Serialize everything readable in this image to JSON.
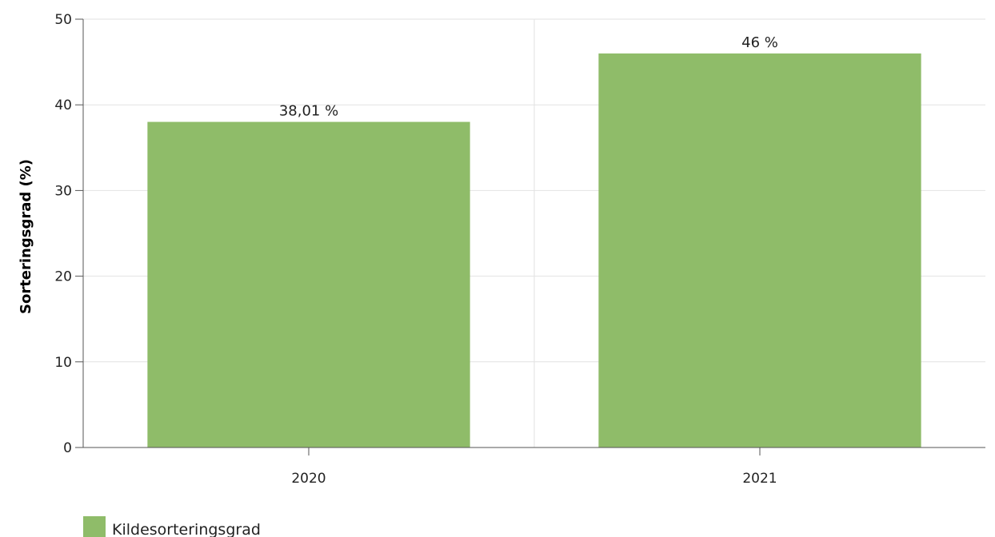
{
  "chart_data": {
    "type": "bar",
    "categories": [
      "2020",
      "2021"
    ],
    "series": [
      {
        "name": "Kildesorteringsgrad",
        "values": [
          38.01,
          46
        ],
        "labels": [
          "38,01 %",
          "46 %"
        ],
        "color": "#8fbc69"
      }
    ],
    "title": "",
    "xlabel": "",
    "ylabel": "Sorteringsgrad (%)",
    "ylim": [
      0,
      50
    ],
    "yticks": [
      0,
      10,
      20,
      30,
      40,
      50
    ],
    "grid": true,
    "legend_position": "bottom-left"
  },
  "colors": {
    "bar": "#8fbc69",
    "grid": "#e2e2e2",
    "axis": "#555555",
    "text": "#222222"
  }
}
